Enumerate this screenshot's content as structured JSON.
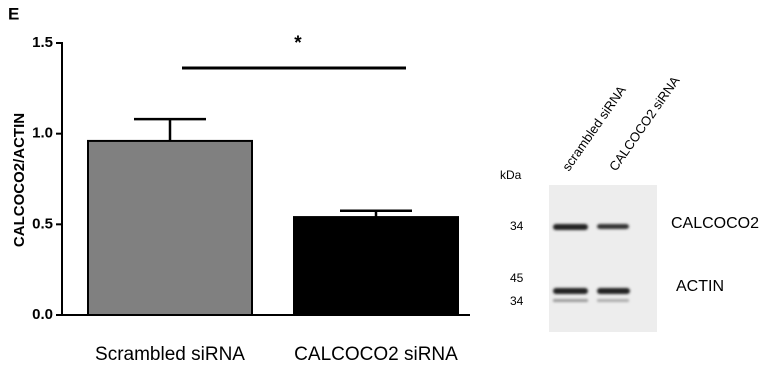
{
  "chart_data": {
    "type": "bar",
    "panel_label": "E",
    "ylabel": "CALCOCO2/ACTIN",
    "categories": [
      "Scrambled siRNA",
      "CALCOCO2 siRNA"
    ],
    "values": [
      0.96,
      0.54
    ],
    "errors": [
      0.12,
      0.035
    ],
    "colors": [
      "#808080",
      "#000000"
    ],
    "ylim": [
      0,
      1.5
    ],
    "yticks": [
      {
        "value": 0,
        "label": "0.0"
      },
      {
        "value": 0.5,
        "label": "0.5"
      },
      {
        "value": 1,
        "label": "1.0"
      },
      {
        "value": 1.5,
        "label": "1.5"
      }
    ],
    "annotation": "*"
  },
  "blot": {
    "lanes": [
      "scrambled siRNA",
      "CALCOCO2 siRNA"
    ],
    "unit": "kDa",
    "markers": [
      34,
      45,
      34
    ],
    "bands": [
      "CALCOCO2",
      "ACTIN"
    ]
  }
}
